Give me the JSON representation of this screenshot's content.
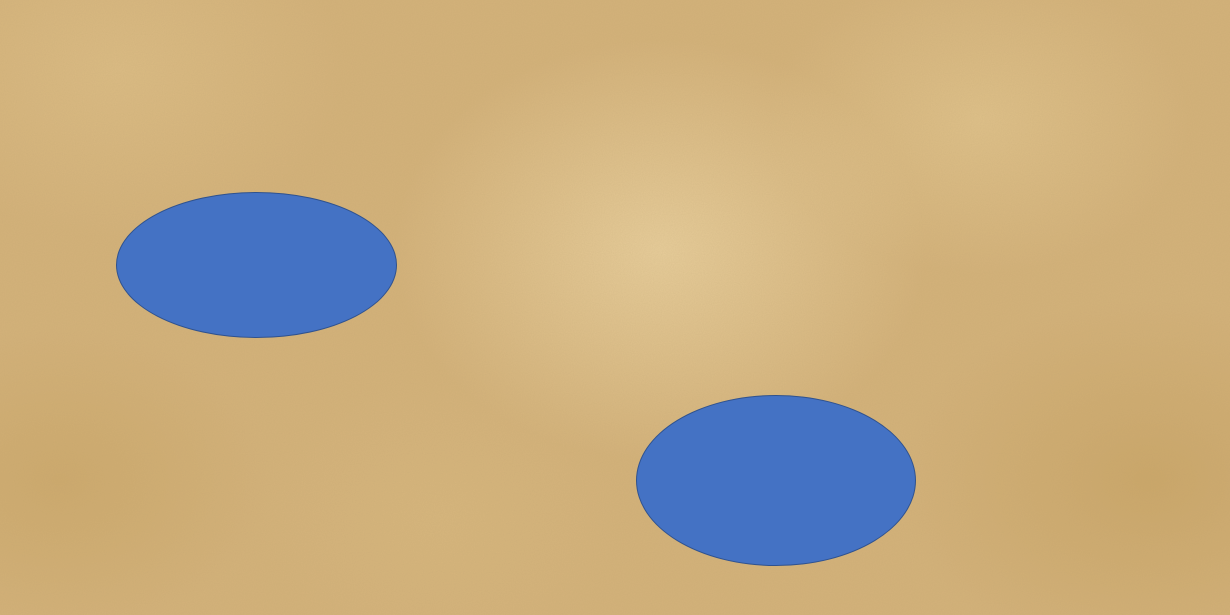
{
  "background": {
    "texture": "parchment",
    "base_color": "#d4b27a"
  },
  "shapes": [
    {
      "name": "ellipse-left",
      "fill": "#4472c4",
      "stroke": "#2f528f"
    },
    {
      "name": "ellipse-right",
      "fill": "#4472c4",
      "stroke": "#2f528f"
    }
  ]
}
